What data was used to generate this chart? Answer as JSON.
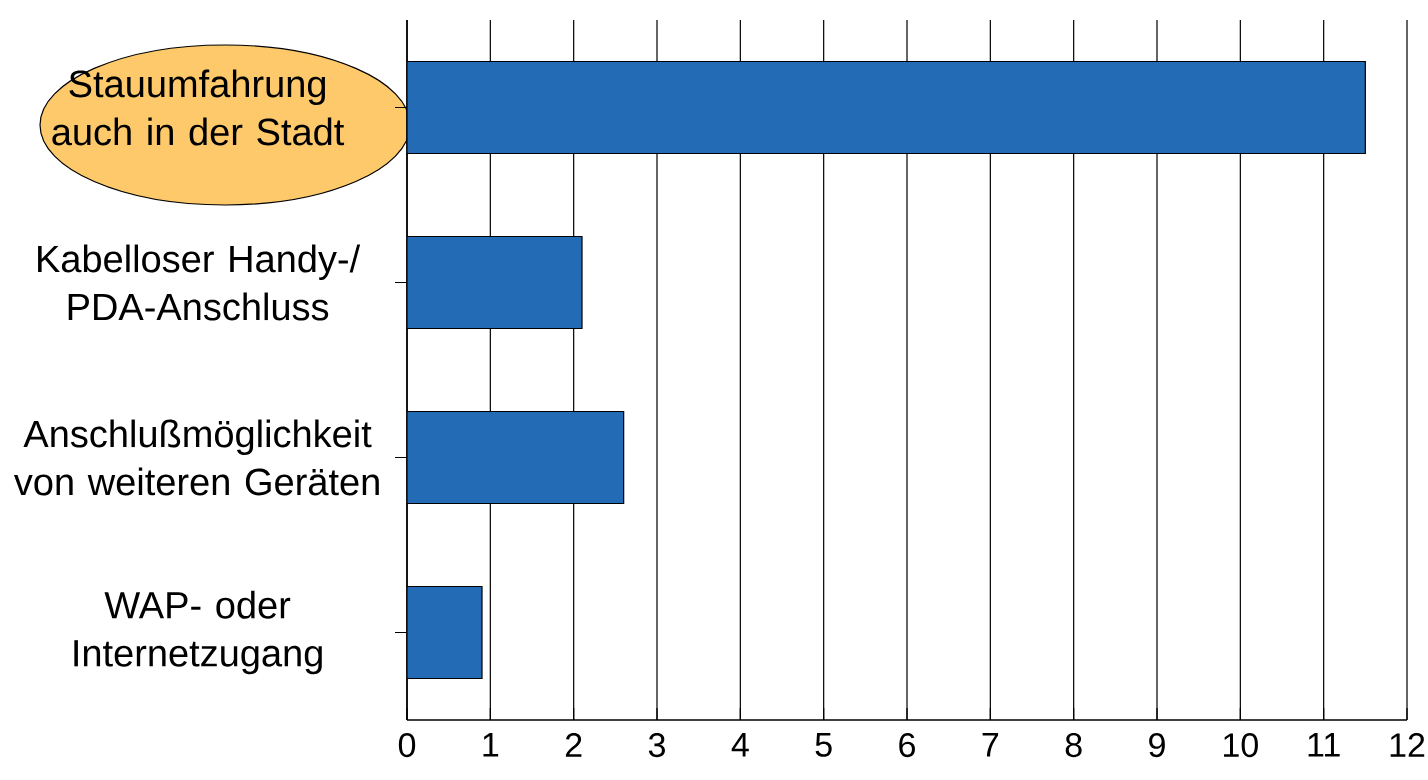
{
  "chart_data": {
    "type": "bar",
    "orientation": "horizontal",
    "categories": [
      "Stauumfahrung auch in der Stadt",
      "Kabelloser Handy-/ PDA-Anschluss",
      "Anschlußmöglichkeit von weiteren Geräten",
      "WAP- oder Internetzugang"
    ],
    "values": [
      11.5,
      2.1,
      2.6,
      0.9
    ],
    "color": "#236bb5",
    "xlim": [
      0,
      12
    ],
    "xticks": [
      0,
      1,
      2,
      3,
      4,
      5,
      6,
      7,
      8,
      9,
      10,
      11,
      12
    ],
    "grid": "x"
  }
}
